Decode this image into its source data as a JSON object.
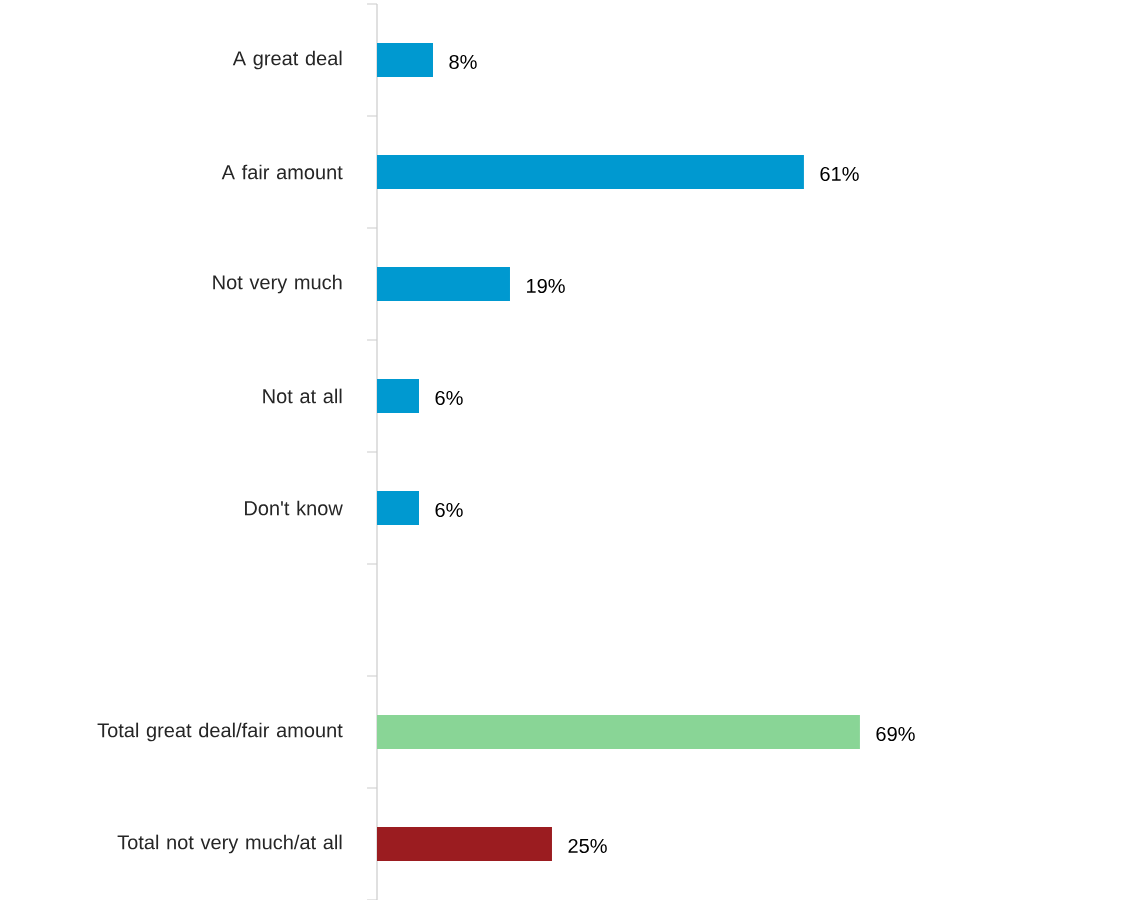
{
  "chart_data": {
    "type": "bar",
    "orientation": "horizontal",
    "categories": [
      "A great deal",
      "A fair amount",
      "Not very much",
      "Not at all",
      "Don't know",
      null,
      "Total great deal/fair amount",
      "Total not very much/at all"
    ],
    "values": [
      8,
      61,
      19,
      6,
      6,
      null,
      69,
      25
    ],
    "colors": [
      "#0099d0",
      "#0099d0",
      "#0099d0",
      "#0099d0",
      "#0099d0",
      null,
      "#89d596",
      "#9b1c20"
    ],
    "value_labels": [
      "8%",
      "61%",
      "19%",
      "6%",
      "6%",
      null,
      "69%",
      "25%"
    ]
  }
}
